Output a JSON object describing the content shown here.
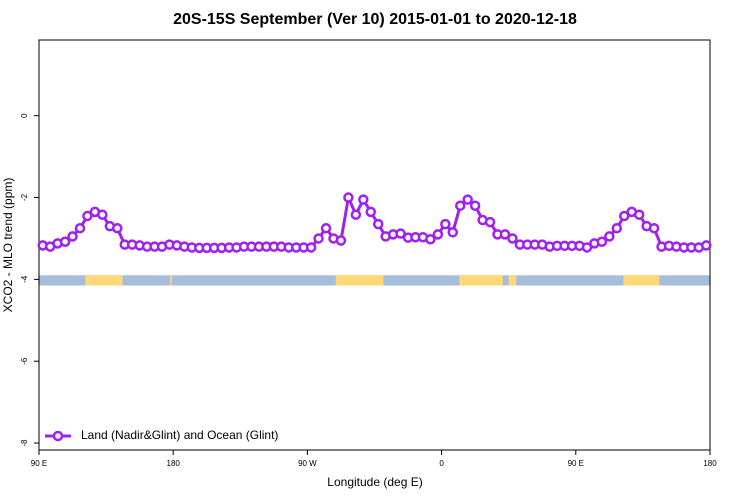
{
  "chart_data": {
    "type": "line",
    "title": "20S-15S September (Ver 10)   2015-01-01 to 2020-12-18",
    "xlabel": "Longitude (deg E)",
    "ylabel": "XCO2 - MLO trend (ppm)",
    "xlim": [
      90,
      540
    ],
    "ylim": [
      -8.17,
      1.85
    ],
    "xticks": [
      {
        "value": 90,
        "label": "90 E"
      },
      180,
      {
        "value": 270,
        "label": "90 W"
      },
      {
        "value": 360,
        "label": "0"
      },
      {
        "value": 450,
        "label": "90 E"
      },
      {
        "value": 540,
        "label": "180"
      }
    ],
    "yticks": [
      0,
      -2,
      -4,
      -6,
      -8
    ],
    "legend": "bottom-left",
    "x": [
      92.5,
      97.5,
      102.5,
      107.5,
      112.5,
      117.5,
      122.5,
      127.5,
      132.5,
      137.5,
      142.5,
      147.5,
      152.5,
      157.5,
      162.5,
      167.5,
      172.5,
      177.5,
      182.5,
      187.5,
      192.5,
      197.5,
      202.5,
      207.5,
      212.5,
      217.5,
      222.5,
      227.5,
      232.5,
      237.5,
      242.5,
      247.5,
      252.5,
      257.5,
      262.5,
      267.5,
      272.5,
      277.5,
      282.5,
      287.5,
      292.5,
      297.5,
      302.5,
      307.5,
      312.5,
      317.5,
      322.5,
      327.5,
      332.5,
      337.5,
      342.5,
      347.5,
      352.5,
      357.5,
      362.5,
      367.5,
      372.5,
      377.5,
      382.5,
      387.5,
      392.5,
      397.5,
      402.5,
      407.5,
      412.5,
      417.5,
      422.5,
      427.5,
      432.5,
      437.5,
      442.5,
      447.5,
      452.5,
      457.5,
      462.5,
      467.5,
      472.5,
      477.5,
      482.5,
      487.5,
      492.5,
      497.5,
      502.5,
      507.5,
      512.5,
      517.5,
      522.5,
      527.5,
      532.5,
      537.5
    ],
    "series": [
      {
        "name": "Land (Nadir&Glint) and Ocean (Glint)",
        "color": "#a020f0",
        "values": [
          -3.17,
          -3.2,
          -3.12,
          -3.08,
          -2.95,
          -2.75,
          -2.45,
          -2.35,
          -2.42,
          -2.7,
          -2.75,
          -3.15,
          -3.15,
          -3.17,
          -3.2,
          -3.2,
          -3.2,
          -3.15,
          -3.17,
          -3.2,
          -3.22,
          -3.23,
          -3.23,
          -3.23,
          -3.23,
          -3.22,
          -3.22,
          -3.2,
          -3.2,
          -3.2,
          -3.2,
          -3.2,
          -3.2,
          -3.22,
          -3.22,
          -3.22,
          -3.22,
          -3.0,
          -2.75,
          -3.0,
          -3.05,
          -2.0,
          -2.42,
          -2.05,
          -2.35,
          -2.65,
          -2.95,
          -2.9,
          -2.88,
          -2.98,
          -2.97,
          -2.97,
          -3.02,
          -2.9,
          -2.65,
          -2.85,
          -2.2,
          -2.05,
          -2.2,
          -2.55,
          -2.6,
          -2.9,
          -2.9,
          -3.0,
          -3.15,
          -3.15,
          -3.15,
          -3.15,
          -3.2,
          -3.18,
          -3.18,
          -3.18,
          -3.18,
          -3.22,
          -3.12,
          -3.08,
          -2.95,
          -2.75,
          -2.45,
          -2.35,
          -2.42,
          -2.7,
          -2.75,
          -3.2,
          -3.18,
          -3.2,
          -3.22,
          -3.22,
          -3.22,
          -3.17
        ]
      }
    ],
    "mask_y": [
      -4.15,
      -3.9
    ],
    "mask_color": "#a6bddb",
    "land_color": "#fed976",
    "land_ranges": [
      [
        121,
        146
      ],
      [
        178,
        179
      ],
      [
        289,
        321
      ],
      [
        372,
        401
      ],
      [
        405,
        410
      ],
      [
        482,
        506
      ]
    ]
  }
}
